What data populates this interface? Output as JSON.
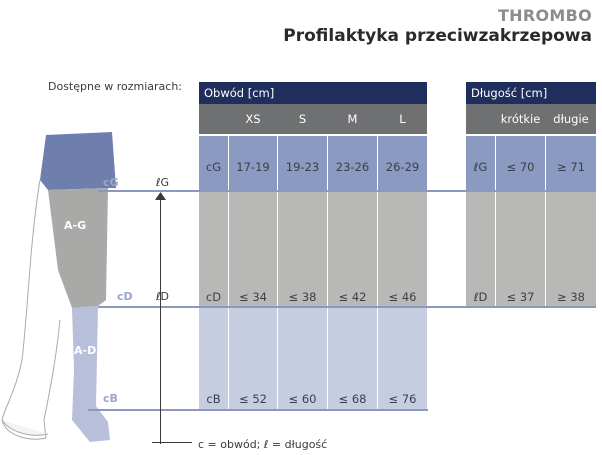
{
  "header": {
    "brand": "THROMBO",
    "title": "Profilaktyka przeciwzakrzepowa"
  },
  "available_label": "Dostępne w rozmiarach:",
  "circumference": {
    "title": "Obwód [cm]",
    "columns": [
      "XS",
      "S",
      "M",
      "L"
    ],
    "rows": [
      {
        "label": "cG",
        "values": [
          "17-19",
          "19-23",
          "23-26",
          "26-29"
        ]
      },
      {
        "label": "cD",
        "values": [
          "≤ 34",
          "≤ 38",
          "≤ 42",
          "≤ 46"
        ]
      },
      {
        "label": "cB",
        "values": [
          "≤ 52",
          "≤ 60",
          "≤ 68",
          "≤ 76"
        ]
      }
    ]
  },
  "length": {
    "title": "Długość [cm]",
    "columns": [
      "krótkie",
      "długie"
    ],
    "rows": [
      {
        "label": "ℓG",
        "values": [
          "≤ 70",
          "≥ 71"
        ]
      },
      {
        "label": "ℓD",
        "values": [
          "≤ 37",
          "≥ 38"
        ]
      }
    ]
  },
  "diagram": {
    "markers": {
      "cG": "cG",
      "cD": "cD",
      "cB": "cB",
      "lG": "ℓG",
      "lD": "ℓD"
    },
    "segments": {
      "ag": "A-G",
      "ad": "A-D"
    }
  },
  "legend": "c = obwód;  ℓ = długość",
  "colors": {
    "header_dark": "#1f2e5c",
    "header_grey": "#6f7072",
    "band_g": "#8a9ac0",
    "band_d": "#b8b9b6",
    "band_b": "#c7cde0",
    "leg_top": "#6f7fad",
    "leg_mid": "#a9aaa8",
    "leg_low": "#b7bfdb"
  }
}
